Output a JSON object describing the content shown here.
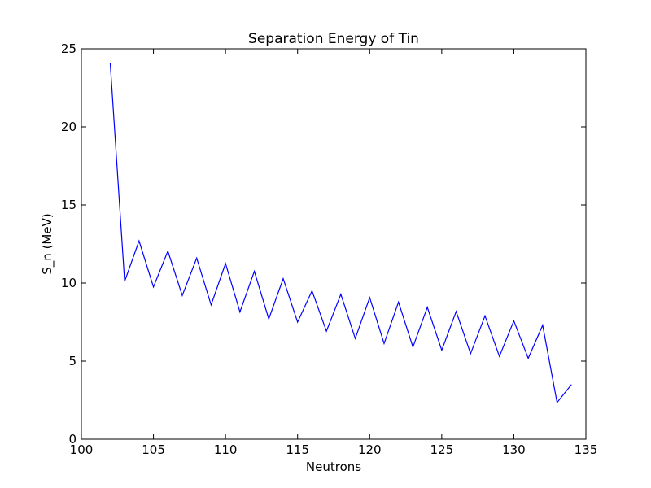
{
  "chart_data": {
    "type": "line",
    "title": "Separation Energy of Tin",
    "xlabel": "Neutrons",
    "ylabel": "S_n (MeV)",
    "xlim": [
      100,
      135
    ],
    "ylim": [
      0,
      25
    ],
    "xticks": [
      100,
      105,
      110,
      115,
      120,
      125,
      130,
      135
    ],
    "yticks": [
      0,
      5,
      10,
      15,
      20,
      25
    ],
    "grid": false,
    "series": [
      {
        "color": "#0000ff",
        "x": [
          102,
          103,
          104,
          105,
          106,
          107,
          108,
          109,
          110,
          111,
          112,
          113,
          114,
          115,
          116,
          117,
          118,
          119,
          120,
          121,
          122,
          123,
          124,
          125,
          126,
          127,
          128,
          129,
          130,
          131,
          132,
          133,
          134
        ],
        "y": [
          24.1,
          10.1,
          12.7,
          9.75,
          12.05,
          9.2,
          11.6,
          8.6,
          11.25,
          8.15,
          10.75,
          7.7,
          10.28,
          7.5,
          9.5,
          6.92,
          9.28,
          6.45,
          9.07,
          6.13,
          8.78,
          5.9,
          8.45,
          5.7,
          8.18,
          5.48,
          7.9,
          5.3,
          7.58,
          5.18,
          7.3,
          2.35,
          3.5
        ]
      }
    ]
  }
}
